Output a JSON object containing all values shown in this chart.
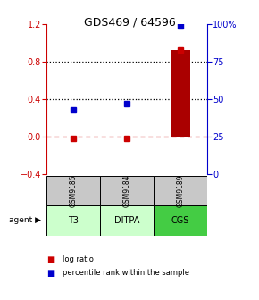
{
  "title": "GDS469 / 64596",
  "samples": [
    "GSM9185",
    "GSM9184",
    "GSM9189"
  ],
  "agents": [
    "T3",
    "DITPA",
    "CGS"
  ],
  "log_ratio": [
    -0.02,
    -0.02,
    0.92
  ],
  "percentile_raw": [
    43,
    47,
    99
  ],
  "bar_color": "#aa0000",
  "dot_log_color": "#cc0000",
  "dot_pct_color": "#0000cc",
  "ylim_left": [
    -0.4,
    1.2
  ],
  "ylim_right": [
    0,
    100
  ],
  "yticks_left": [
    -0.4,
    0.0,
    0.4,
    0.8,
    1.2
  ],
  "yticks_right": [
    0,
    25,
    50,
    75,
    100
  ],
  "hline_dotted": [
    0.4,
    0.8
  ],
  "hline_dash": 0.0,
  "cell_gray": "#c8c8c8",
  "agent_colors": [
    "#ccffcc",
    "#ccffcc",
    "#44cc44"
  ],
  "left_axis_color": "#cc0000",
  "right_axis_color": "#0000cc",
  "bar_width": 0.35,
  "marker_size": 5
}
